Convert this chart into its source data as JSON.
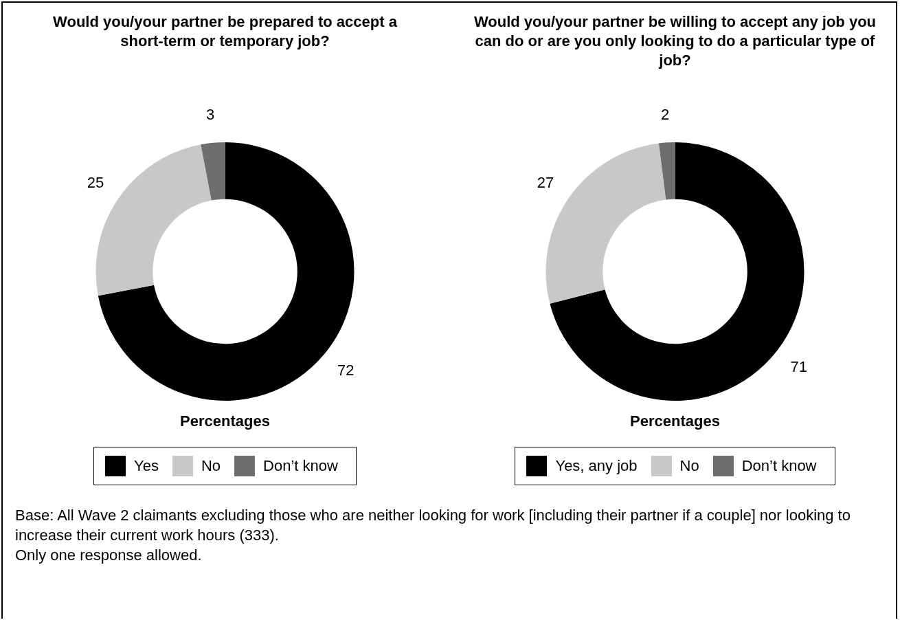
{
  "chart_data": [
    {
      "type": "donut",
      "title": "Would you/your partner be prepared to accept a short-term or temporary job?",
      "xlabel": "Percentages",
      "categories": [
        "Yes",
        "No",
        "Don’t know"
      ],
      "values": [
        72,
        25,
        3
      ],
      "colors": [
        "#000000",
        "#c8c8c8",
        "#6e6e6e"
      ],
      "data_labels": true,
      "legend": "bottom",
      "annotations": [
        "Base: All Wave 2 claimants excluding those who are neither looking for work [including their partner if a couple] nor looking to increase their current work hours (333).",
        "Only one response allowed."
      ]
    },
    {
      "type": "donut",
      "title": "Would you/your partner be willing to accept any job you can do or are you only looking to do a particular type of job?",
      "xlabel": "Percentages",
      "categories": [
        "Yes, any job",
        "No",
        "Don’t know"
      ],
      "values": [
        71,
        27,
        2
      ],
      "colors": [
        "#000000",
        "#c8c8c8",
        "#6e6e6e"
      ],
      "data_labels": true,
      "legend": "bottom"
    }
  ]
}
